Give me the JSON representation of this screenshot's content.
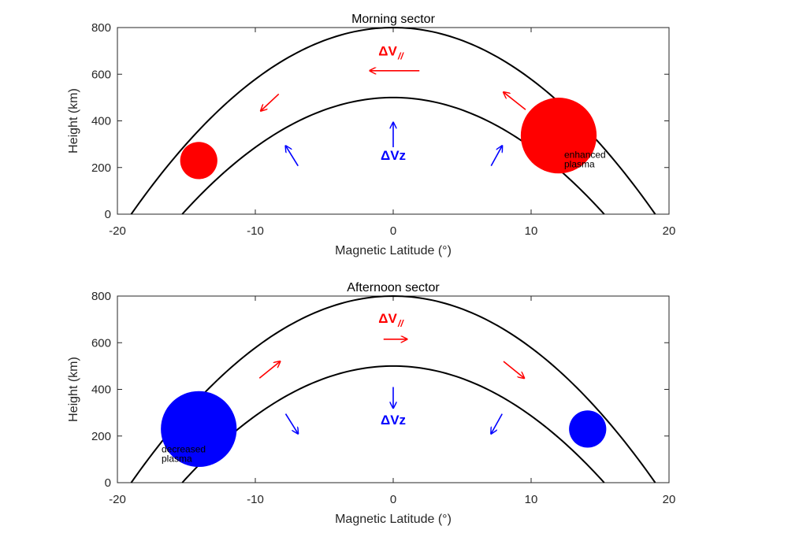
{
  "chart_data": [
    {
      "type": "line",
      "title": "Morning sector",
      "xlabel": "Magnetic Latitude (°)",
      "ylabel": "Height (km)",
      "xlim": [
        -20,
        20
      ],
      "ylim": [
        0,
        800
      ],
      "xticks": [
        -20,
        -10,
        0,
        10,
        20
      ],
      "yticks": [
        0,
        200,
        400,
        600,
        800
      ],
      "xtick_labels": [
        "-20",
        "-10",
        "0",
        "10",
        "20"
      ],
      "ytick_labels": [
        "0",
        "200",
        "400",
        "600",
        "800"
      ],
      "grid": false,
      "colors": {
        "parallel": "#ff0000",
        "vertical": "#0000ff",
        "line": "#000000"
      },
      "series": [
        {
          "x": [
            -19,
            -15,
            -10,
            -5,
            0,
            5,
            10,
            15,
            19
          ],
          "y": [
            0,
            307,
            557,
            730,
            800,
            730,
            557,
            307,
            0
          ]
        },
        {
          "x": [
            -15.3,
            -12,
            -8,
            -4,
            0,
            4,
            8,
            12,
            15.3
          ],
          "y": [
            0,
            194,
            363,
            466,
            500,
            466,
            363,
            194,
            0
          ]
        }
      ],
      "blobs": [
        {
          "x": -14.1,
          "y": 230,
          "r": 1.35,
          "color": "#ff0000"
        },
        {
          "x": 12.0,
          "y": 337,
          "r": 2.75,
          "color": "#ff0000"
        }
      ],
      "arrows": [
        {
          "x0": -8.3,
          "y0": 515,
          "x1": -9.6,
          "y1": 443,
          "color": "#ff0000"
        },
        {
          "x0": 1.9,
          "y0": 615,
          "x1": -1.7,
          "y1": 615,
          "color": "#ff0000"
        },
        {
          "x0": 9.6,
          "y0": 448,
          "x1": 8.0,
          "y1": 523,
          "color": "#ff0000"
        },
        {
          "x0": -6.9,
          "y0": 207,
          "x1": -7.8,
          "y1": 293,
          "color": "#0000ff"
        },
        {
          "x0": 0,
          "y0": 287,
          "x1": 0,
          "y1": 393,
          "color": "#0000ff"
        },
        {
          "x0": 7.1,
          "y0": 207,
          "x1": 7.9,
          "y1": 293,
          "color": "#0000ff"
        }
      ],
      "labels": {
        "parallel": {
          "text": "ΔV",
          "sub": "//",
          "x": -0.4,
          "y": 680,
          "color": "#ff0000"
        },
        "vertical": {
          "text": "ΔVz",
          "x": 0,
          "y": 233,
          "color": "#0000ff"
        },
        "plasma": {
          "lines": [
            "enhanced",
            "plasma"
          ],
          "x": 12.4,
          "y": 242,
          "anchor": "start"
        }
      }
    },
    {
      "type": "line",
      "title": "Afternoon sector",
      "xlabel": "Magnetic Latitude (°)",
      "ylabel": "Height (km)",
      "xlim": [
        -20,
        20
      ],
      "ylim": [
        0,
        800
      ],
      "xticks": [
        -20,
        -10,
        0,
        10,
        20
      ],
      "yticks": [
        0,
        200,
        400,
        600,
        800
      ],
      "xtick_labels": [
        "-20",
        "-10",
        "0",
        "10",
        "20"
      ],
      "ytick_labels": [
        "0",
        "200",
        "400",
        "600",
        "800"
      ],
      "grid": false,
      "colors": {
        "parallel": "#ff0000",
        "vertical": "#0000ff",
        "line": "#000000"
      },
      "series": [
        {
          "x": [
            -19,
            -15,
            -10,
            -5,
            0,
            5,
            10,
            15,
            19
          ],
          "y": [
            0,
            307,
            557,
            730,
            800,
            730,
            557,
            307,
            0
          ]
        },
        {
          "x": [
            -15.3,
            -12,
            -8,
            -4,
            0,
            4,
            8,
            12,
            15.3
          ],
          "y": [
            0,
            194,
            363,
            466,
            500,
            466,
            363,
            194,
            0
          ]
        }
      ],
      "blobs": [
        {
          "x": -14.1,
          "y": 230,
          "r": 2.75,
          "color": "#0000ff"
        },
        {
          "x": 14.1,
          "y": 230,
          "r": 1.35,
          "color": "#0000ff"
        }
      ],
      "arrows": [
        {
          "x0": -9.7,
          "y0": 448,
          "x1": -8.2,
          "y1": 520,
          "color": "#ff0000"
        },
        {
          "x0": -0.7,
          "y0": 615,
          "x1": 1.0,
          "y1": 615,
          "color": "#ff0000"
        },
        {
          "x0": 8.0,
          "y0": 520,
          "x1": 9.5,
          "y1": 448,
          "color": "#ff0000"
        },
        {
          "x0": -7.8,
          "y0": 295,
          "x1": -6.9,
          "y1": 210,
          "color": "#0000ff"
        },
        {
          "x0": 0,
          "y0": 410,
          "x1": 0,
          "y1": 320,
          "color": "#0000ff"
        },
        {
          "x0": 7.9,
          "y0": 295,
          "x1": 7.1,
          "y1": 210,
          "color": "#0000ff"
        }
      ],
      "labels": {
        "parallel": {
          "text": "ΔV",
          "sub": "//",
          "x": -0.4,
          "y": 685,
          "color": "#ff0000"
        },
        "vertical": {
          "text": "ΔVz",
          "x": 0,
          "y": 250,
          "color": "#0000ff"
        },
        "plasma": {
          "lines": [
            "decreased",
            "plasma"
          ],
          "x": -16.8,
          "y": 130,
          "anchor": "start"
        }
      }
    }
  ]
}
